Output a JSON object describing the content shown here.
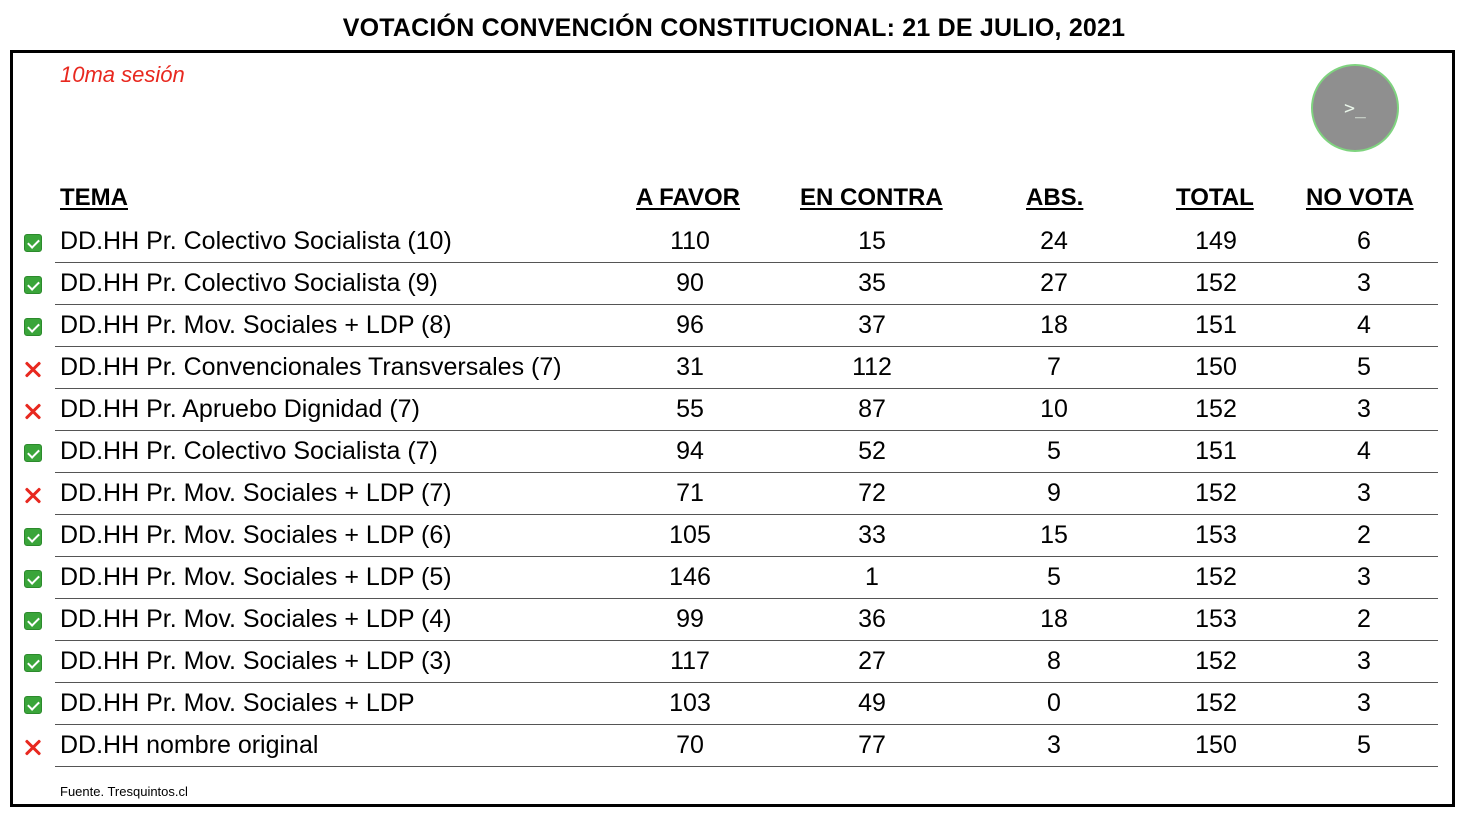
{
  "title": "VOTACIÓN CONVENCIÓN CONSTITUCIONAL: 21 DE JULIO, 2021",
  "session": "10ma sesión",
  "terminal_button_label": ">_",
  "headers": {
    "tema": "TEMA",
    "a_favor": "A FAVOR",
    "en_contra": "EN CONTRA",
    "abs": "ABS.",
    "total": "TOTAL",
    "no_vota": "NO VOTA"
  },
  "rows": [
    {
      "status": "approved",
      "tema": "DD.HH Pr. Colectivo Socialista (10)",
      "a_favor": "110",
      "en_contra": "15",
      "abs": "24",
      "total": "149",
      "no_vota": "6"
    },
    {
      "status": "approved",
      "tema": "DD.HH Pr. Colectivo Socialista (9)",
      "a_favor": "90",
      "en_contra": "35",
      "abs": "27",
      "total": "152",
      "no_vota": "3"
    },
    {
      "status": "approved",
      "tema": "DD.HH Pr. Mov. Sociales + LDP (8)",
      "a_favor": "96",
      "en_contra": "37",
      "abs": "18",
      "total": "151",
      "no_vota": "4"
    },
    {
      "status": "rejected",
      "tema": "DD.HH Pr. Convencionales Transversales (7)",
      "a_favor": "31",
      "en_contra": "112",
      "abs": "7",
      "total": "150",
      "no_vota": "5"
    },
    {
      "status": "rejected",
      "tema": "DD.HH Pr. Apruebo Dignidad (7)",
      "a_favor": "55",
      "en_contra": "87",
      "abs": "10",
      "total": "152",
      "no_vota": "3"
    },
    {
      "status": "approved",
      "tema": "DD.HH Pr. Colectivo Socialista (7)",
      "a_favor": "94",
      "en_contra": "52",
      "abs": "5",
      "total": "151",
      "no_vota": "4"
    },
    {
      "status": "rejected",
      "tema": "DD.HH Pr. Mov. Sociales + LDP (7)",
      "a_favor": "71",
      "en_contra": "72",
      "abs": "9",
      "total": "152",
      "no_vota": "3"
    },
    {
      "status": "approved",
      "tema": "DD.HH Pr. Mov. Sociales + LDP (6)",
      "a_favor": "105",
      "en_contra": "33",
      "abs": "15",
      "total": "153",
      "no_vota": "2"
    },
    {
      "status": "approved",
      "tema": "DD.HH Pr. Mov. Sociales + LDP (5)",
      "a_favor": "146",
      "en_contra": "1",
      "abs": "5",
      "total": "152",
      "no_vota": "3"
    },
    {
      "status": "approved",
      "tema": "DD.HH Pr. Mov. Sociales + LDP (4)",
      "a_favor": "99",
      "en_contra": "36",
      "abs": "18",
      "total": "153",
      "no_vota": "2"
    },
    {
      "status": "approved",
      "tema": "DD.HH Pr. Mov. Sociales + LDP (3)",
      "a_favor": "117",
      "en_contra": "27",
      "abs": "8",
      "total": "152",
      "no_vota": "3"
    },
    {
      "status": "approved",
      "tema": "DD.HH Pr. Mov. Sociales + LDP",
      "a_favor": "103",
      "en_contra": "49",
      "abs": "0",
      "total": "152",
      "no_vota": "3"
    },
    {
      "status": "rejected",
      "tema": "DD.HH nombre original",
      "a_favor": "70",
      "en_contra": "77",
      "abs": "3",
      "total": "150",
      "no_vota": "5"
    }
  ],
  "source": "Fuente. Tresquintos.cl",
  "colors": {
    "accent_red": "#e8281f",
    "check_green": "#3aa53a"
  }
}
